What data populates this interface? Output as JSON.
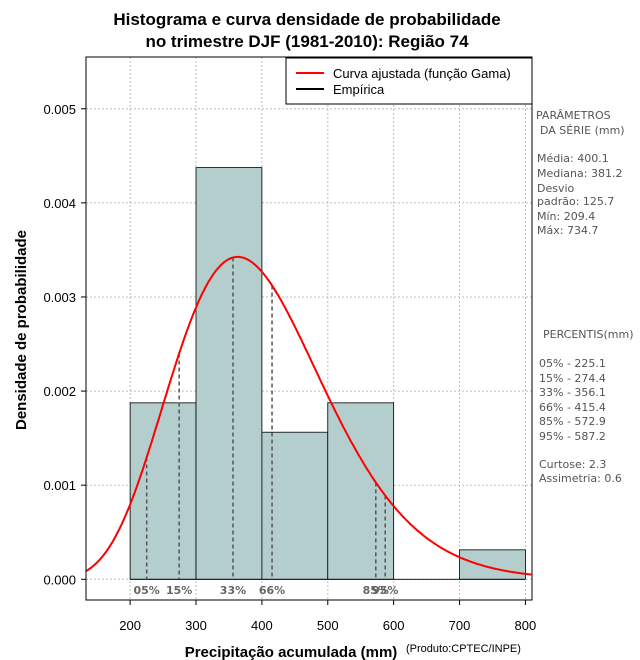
{
  "chart_data": {
    "type": "bar",
    "title": [
      "Histograma e curva densidade de probabilidade",
      "no trimestre DJF (1981-2010): Região 74"
    ],
    "xlabel": "Precipitação acumulada (mm)",
    "ylabel": "Densidade de probabilidade",
    "credit": "(Produto:CPTEC/INPE)",
    "xlim": [
      133,
      810
    ],
    "ylim": [
      -0.00022,
      0.00555
    ],
    "xticks": [
      200,
      300,
      400,
      500,
      600,
      700,
      800
    ],
    "yticks": [
      0.0,
      0.001,
      0.002,
      0.003,
      0.004,
      0.005
    ],
    "ytick_labels": [
      "0.000",
      "0.001",
      "0.002",
      "0.003",
      "0.004",
      "0.005"
    ],
    "grid": true,
    "histogram": {
      "name": "Empírica",
      "bins": [
        {
          "start": 200,
          "end": 300,
          "density": 0.001875
        },
        {
          "start": 300,
          "end": 400,
          "density": 0.004375
        },
        {
          "start": 400,
          "end": 500,
          "density": 0.001563
        },
        {
          "start": 500,
          "end": 600,
          "density": 0.001875
        },
        {
          "start": 600,
          "end": 700,
          "density": 0.0
        },
        {
          "start": 700,
          "end": 800,
          "density": 0.000313
        }
      ],
      "color": "#b4cdcd"
    },
    "fitted_curve": {
      "name": "Curva ajustada (função Gama)",
      "distribution": "gamma",
      "shape": 10.9,
      "scale": 36.7,
      "color": "#ff0000"
    },
    "percentiles": [
      {
        "label": "05%",
        "value": 225.1
      },
      {
        "label": "15%",
        "value": 274.4
      },
      {
        "label": "33%",
        "value": 356.1
      },
      {
        "label": "66%",
        "value": 415.4
      },
      {
        "label": "85%",
        "value": 572.9
      },
      {
        "label": "95%",
        "value": 587.2
      }
    ],
    "legend": {
      "position": "top-right",
      "entries": [
        "Curva ajustada (função Gama)",
        "Empírica"
      ]
    }
  },
  "side_panel": {
    "params_title": [
      "PARÂMETROS",
      "DA SÉRIE (mm)"
    ],
    "params": [
      "Média:  400.1",
      "Mediana:  381.2",
      "Desvio",
      "padrão:  125.7",
      "Mín:  209.4",
      "Máx:  734.7"
    ],
    "percentis_title": "PERCENTIS(mm)",
    "percentis": [
      "05% -  225.1",
      "15% -  274.4",
      "33% -  356.1",
      "66% -  415.4",
      "85% -  572.9",
      "95% -  587.2"
    ],
    "stats": [
      "Curtose:  2.3",
      "Assimetria:  0.6"
    ]
  }
}
